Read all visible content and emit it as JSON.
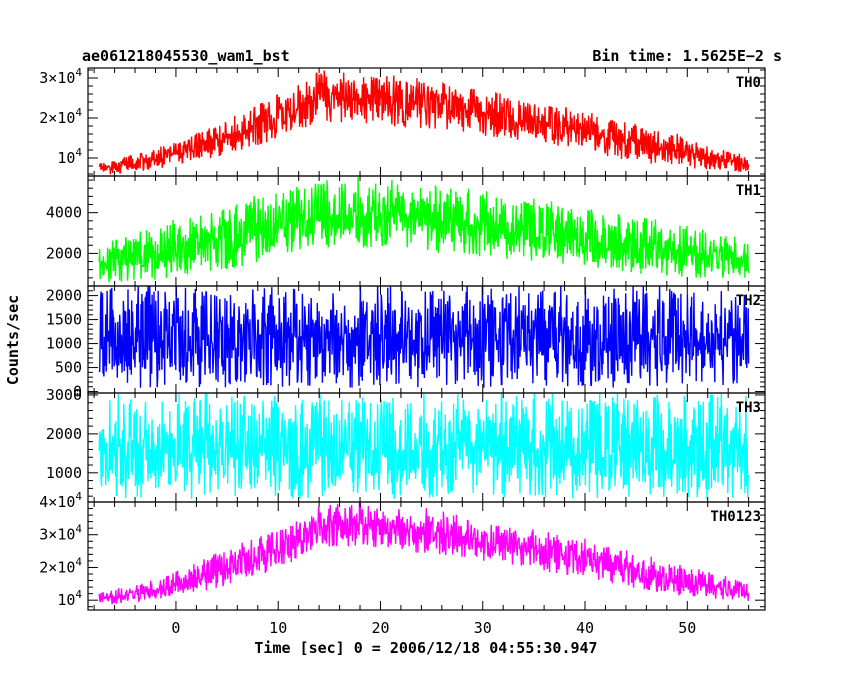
{
  "chart_data": {
    "type": "line",
    "title": "ae061218045530_wam1_bst",
    "bin_time_label": "Bin time: 1.5625E−2 s",
    "xlabel": "Time [sec] 0 = 2006/12/18 04:55:30.947",
    "ylabel": "Counts/sec",
    "xlim": [
      -8.6,
      57.6
    ],
    "x_ticks": [
      0,
      10,
      20,
      30,
      40,
      50
    ],
    "x_tick_labels": [
      "0",
      "10",
      "20",
      "30",
      "40",
      "50"
    ],
    "data_x_range": [
      -7.5,
      56.0
    ],
    "grid": false,
    "series": [
      {
        "name": "TH0",
        "color": "#ff0000",
        "ylim": [
          5500,
          32500
        ],
        "y_ticks": [
          10000,
          20000,
          30000
        ],
        "y_tick_labels": [
          [
            "",
            "10",
            "4"
          ],
          [
            "2×",
            "10",
            "4"
          ],
          [
            "3×",
            "10",
            "4"
          ]
        ],
        "envelope": {
          "x": [
            -7.5,
            -2,
            5,
            10,
            14,
            18,
            25,
            30,
            35,
            40,
            45,
            50,
            56
          ],
          "low": [
            5600,
            7000,
            10500,
            14500,
            19000,
            18500,
            17000,
            15500,
            13500,
            11500,
            9000,
            7500,
            6200
          ],
          "high": [
            9000,
            12000,
            19000,
            25500,
            31500,
            30500,
            29000,
            26500,
            24000,
            21000,
            18000,
            15000,
            10000
          ]
        }
      },
      {
        "name": "TH1",
        "color": "#00ff00",
        "ylim": [
          400,
          5800
        ],
        "y_ticks": [
          2000,
          4000
        ],
        "y_tick_labels": [
          [
            "",
            "2000",
            ""
          ],
          [
            "",
            "4000",
            ""
          ]
        ],
        "envelope": {
          "x": [
            -7.5,
            -2,
            5,
            10,
            15,
            20,
            25,
            30,
            35,
            40,
            45,
            50,
            56
          ],
          "low": [
            500,
            700,
            1200,
            1700,
            2300,
            2200,
            2000,
            1800,
            1600,
            1300,
            1000,
            800,
            600
          ],
          "high": [
            2400,
            3200,
            4300,
            5000,
            5600,
            5500,
            5200,
            4900,
            4500,
            4100,
            3700,
            3200,
            2600
          ]
        }
      },
      {
        "name": "TH2",
        "color": "#0000ff",
        "ylim": [
          -30,
          2200
        ],
        "y_ticks": [
          0,
          500,
          1000,
          1500,
          2000
        ],
        "y_tick_labels": [
          [
            "",
            "0",
            ""
          ],
          [
            "",
            "500",
            ""
          ],
          [
            "",
            "1000",
            ""
          ],
          [
            "",
            "1500",
            ""
          ],
          [
            "",
            "2000",
            ""
          ]
        ],
        "envelope": {
          "x": [
            -7.5,
            56
          ],
          "low": [
            80,
            80
          ],
          "high": [
            2100,
            2100
          ]
        }
      },
      {
        "name": "TH3",
        "color": "#00ffff",
        "ylim": [
          250,
          3050
        ],
        "y_ticks": [
          1000,
          2000,
          3000
        ],
        "y_tick_labels": [
          [
            "",
            "1000",
            ""
          ],
          [
            "",
            "2000",
            ""
          ],
          [
            "",
            "3000",
            ""
          ]
        ],
        "envelope": {
          "x": [
            -7.5,
            56
          ],
          "low": [
            320,
            320
          ],
          "high": [
            2900,
            2900
          ]
        }
      },
      {
        "name": "TH0123",
        "color": "#ff00ff",
        "ylim": [
          7000,
          40000
        ],
        "y_ticks": [
          10000,
          20000,
          30000,
          40000
        ],
        "y_tick_labels": [
          [
            "",
            "10",
            "4"
          ],
          [
            "2×",
            "10",
            "4"
          ],
          [
            "3×",
            "10",
            "4"
          ],
          [
            "4×",
            "10",
            "4"
          ]
        ],
        "envelope": {
          "x": [
            -7.5,
            -2,
            5,
            10,
            14,
            18,
            25,
            30,
            35,
            40,
            45,
            50,
            56
          ],
          "low": [
            8500,
            9500,
            14500,
            19500,
            26000,
            26500,
            24000,
            22000,
            19500,
            16500,
            13500,
            11000,
            9500
          ],
          "high": [
            12000,
            16000,
            25000,
            31500,
            38500,
            39500,
            37000,
            33500,
            31000,
            28000,
            24000,
            20000,
            15000
          ]
        }
      }
    ]
  }
}
